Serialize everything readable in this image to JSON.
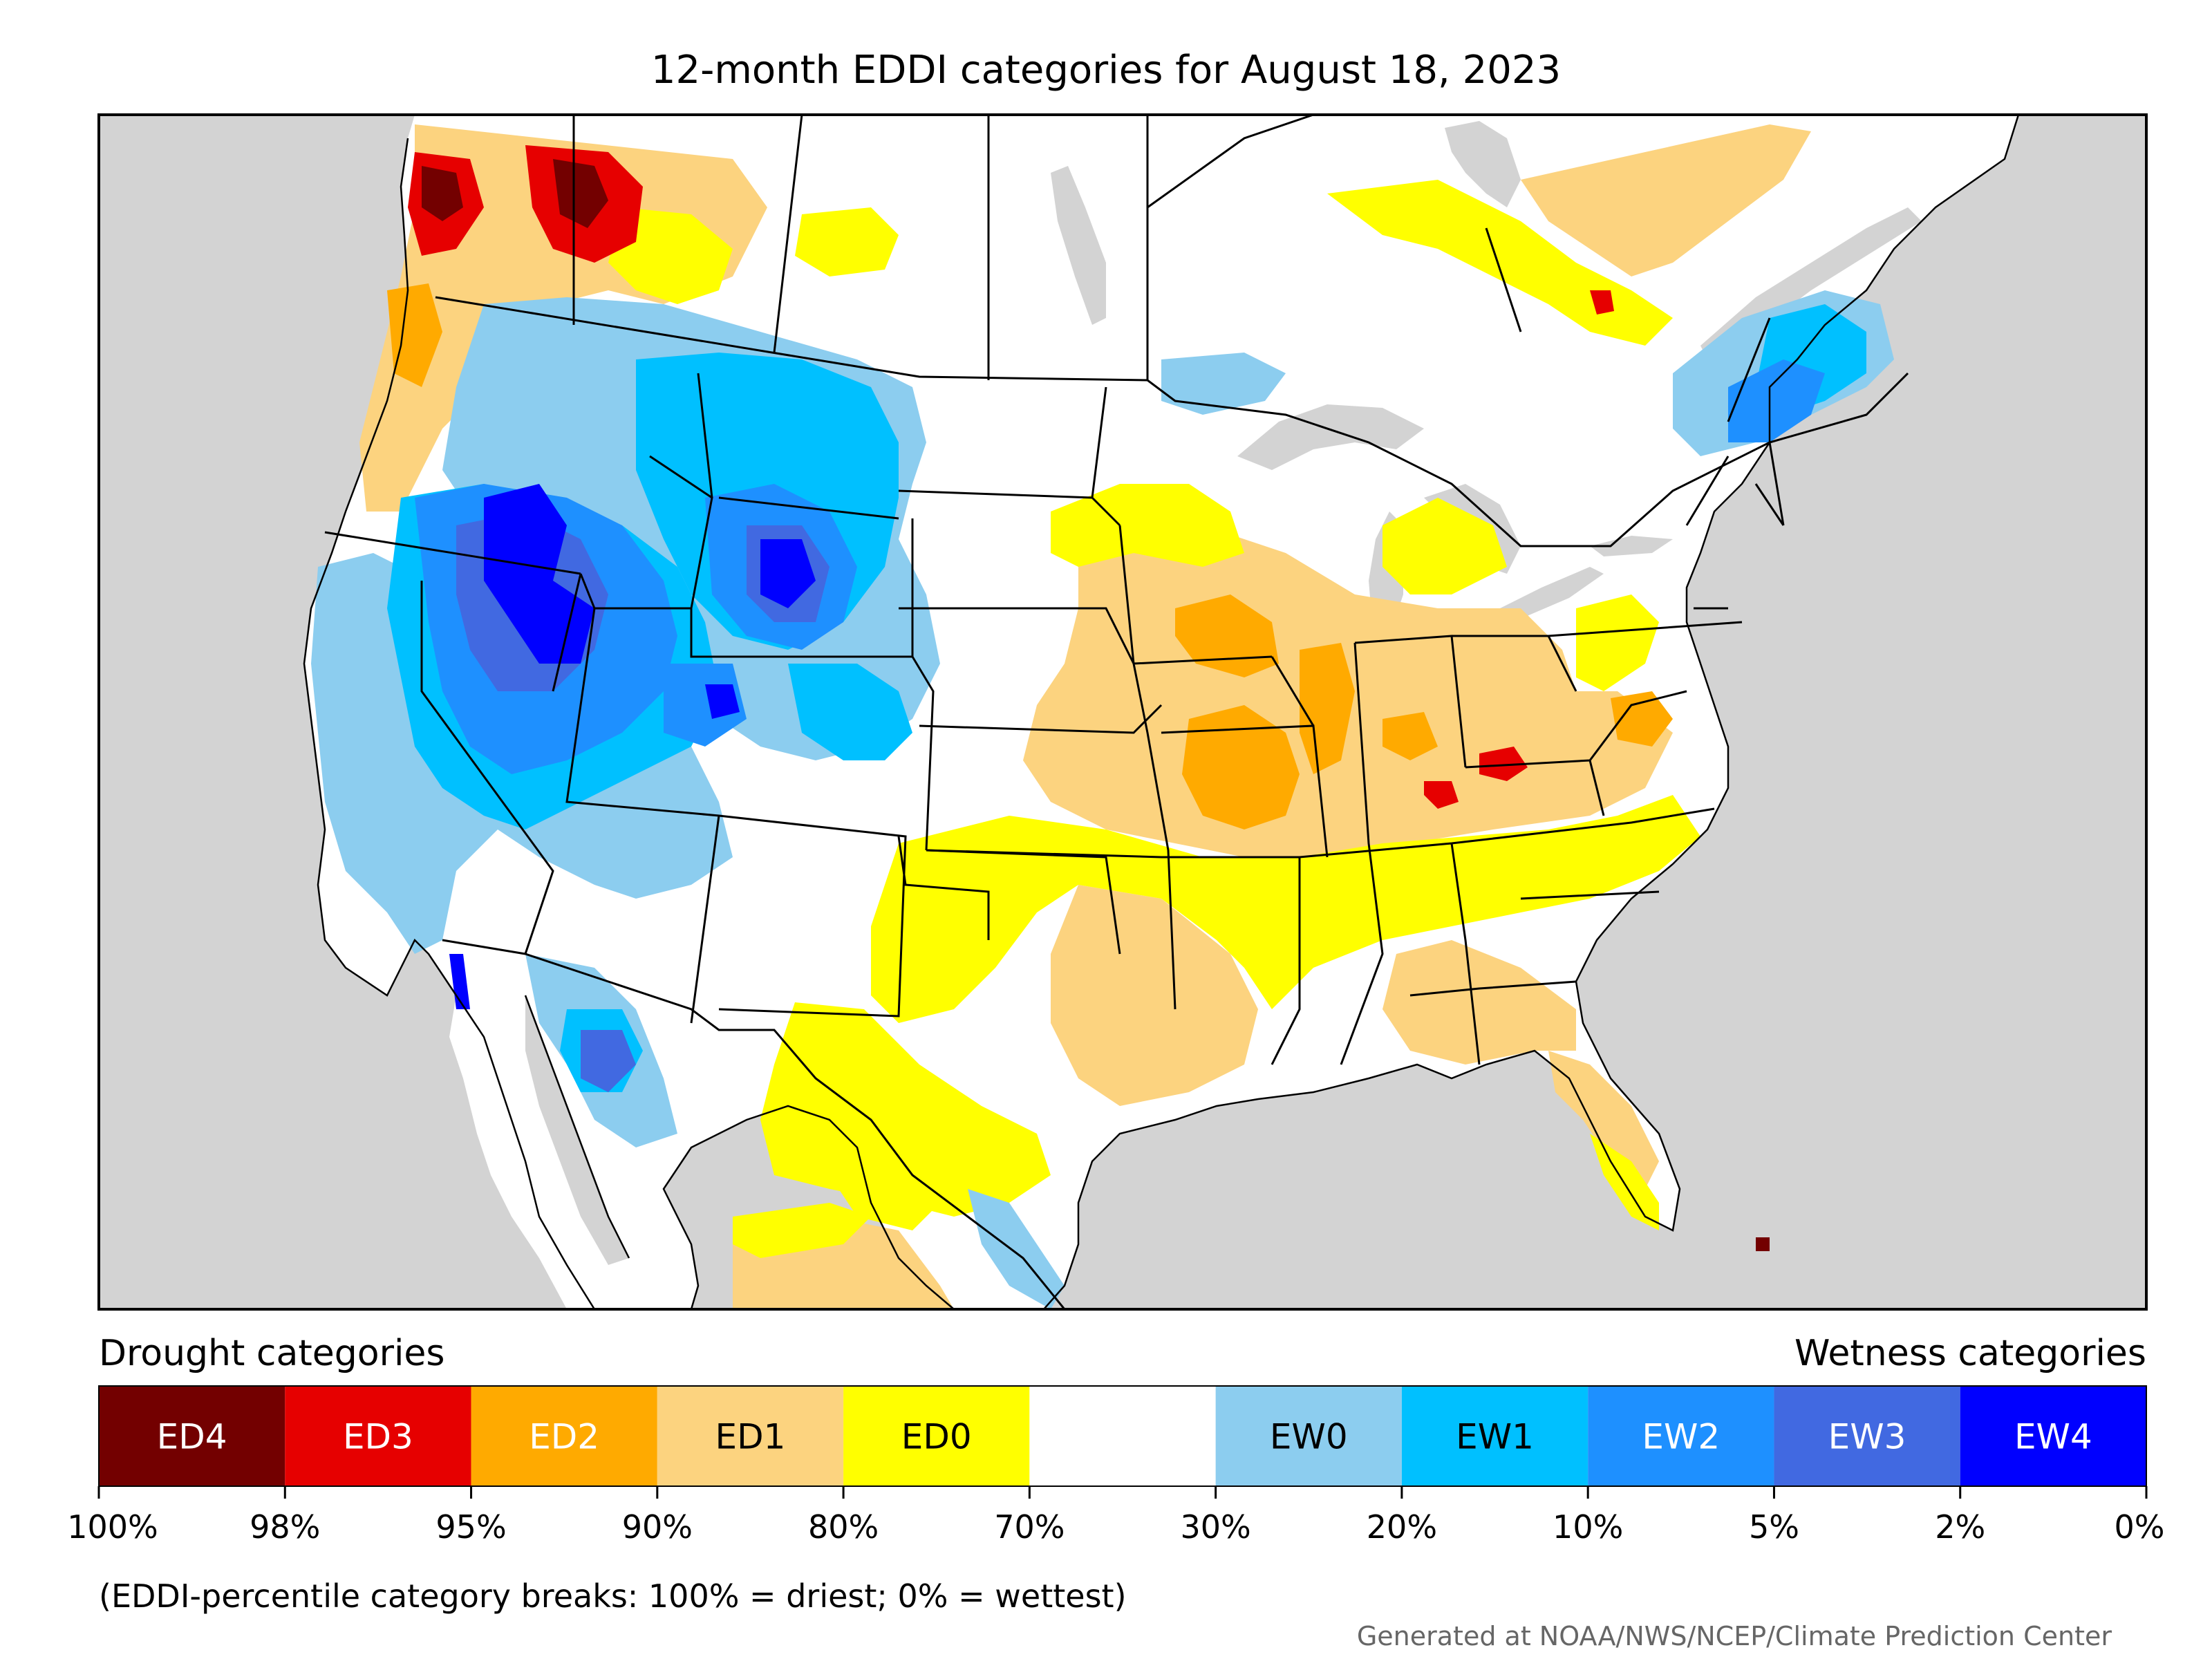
{
  "title": "12-month EDDI categories for August 18, 2023",
  "legend": {
    "drought_label": "Drought categories",
    "wetness_label": "Wetness categories",
    "categories": [
      {
        "label": "ED4",
        "color": "#730000",
        "text_color": "#ffffff"
      },
      {
        "label": "ED3",
        "color": "#e60000",
        "text_color": "#ffffff"
      },
      {
        "label": "ED2",
        "color": "#ffaa00",
        "text_color": "#ffffff"
      },
      {
        "label": "ED1",
        "color": "#fcd37f",
        "text_color": "#000000"
      },
      {
        "label": "ED0",
        "color": "#ffff00",
        "text_color": "#000000"
      },
      {
        "label": "",
        "color": "#ffffff",
        "text_color": "#000000"
      },
      {
        "label": "EW0",
        "color": "#8ccdef",
        "text_color": "#000000"
      },
      {
        "label": "EW1",
        "color": "#00c0ff",
        "text_color": "#000000"
      },
      {
        "label": "EW2",
        "color": "#1e90ff",
        "text_color": "#ffffff"
      },
      {
        "label": "EW3",
        "color": "#4169e1",
        "text_color": "#ffffff"
      },
      {
        "label": "EW4",
        "color": "#0000ff",
        "text_color": "#ffffff"
      }
    ],
    "ticks": [
      "100%",
      "98%",
      "95%",
      "90%",
      "80%",
      "70%",
      "30%",
      "20%",
      "10%",
      "5%",
      "2%",
      "0%"
    ]
  },
  "note": "(EDDI-percentile category breaks: 100% = driest; 0% = wettest)",
  "credit": "Generated at NOAA/NWS/NCEP/Climate Prediction Center",
  "colors": {
    "water": "#d3d3d3",
    "land": "#ffffff",
    "ED4": "#730000",
    "ED3": "#e60000",
    "ED2": "#ffaa00",
    "ED1": "#fcd37f",
    "ED0": "#ffff00",
    "EW0": "#8ccdef",
    "EW1": "#00c0ff",
    "EW2": "#1e90ff",
    "EW3": "#4169e1",
    "EW4": "#0000ff"
  }
}
